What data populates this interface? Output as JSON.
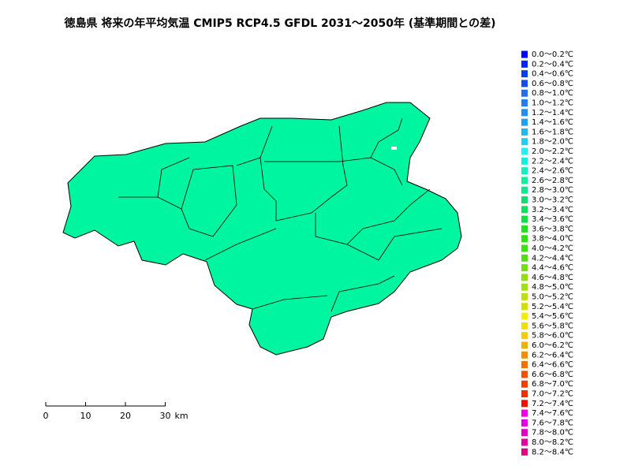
{
  "title": "徳島県 将来の年平均気温 CMIP5 RCP4.5 GFDL 2031～2050年 (基準期間との差)",
  "legend": [
    {
      "label": "0.0～0.2℃",
      "color": "#0000ff"
    },
    {
      "label": "0.2～0.4℃",
      "color": "#0028f0"
    },
    {
      "label": "0.4～0.6℃",
      "color": "#0040e8"
    },
    {
      "label": "0.6～0.8℃",
      "color": "#1050e8"
    },
    {
      "label": "0.8～1.0℃",
      "color": "#2070e8"
    },
    {
      "label": "1.0～1.2℃",
      "color": "#2080f0"
    },
    {
      "label": "1.2～1.4℃",
      "color": "#2090f0"
    },
    {
      "label": "1.4～1.6℃",
      "color": "#20a0f0"
    },
    {
      "label": "1.6～1.8℃",
      "color": "#20b8f0"
    },
    {
      "label": "1.8～2.0℃",
      "color": "#20d0f0"
    },
    {
      "label": "2.0～2.2℃",
      "color": "#20f0f0"
    },
    {
      "label": "2.2～2.4℃",
      "color": "#10f0e0"
    },
    {
      "label": "2.4～2.6℃",
      "color": "#10f0c0"
    },
    {
      "label": "2.6～2.8℃",
      "color": "#10f0a0"
    },
    {
      "label": "2.8～3.0℃",
      "color": "#10e890"
    },
    {
      "label": "3.0～3.2℃",
      "color": "#10e070"
    },
    {
      "label": "3.2～3.4℃",
      "color": "#10e060"
    },
    {
      "label": "3.4～3.6℃",
      "color": "#10e040"
    },
    {
      "label": "3.6～3.8℃",
      "color": "#20e020"
    },
    {
      "label": "3.8～4.0℃",
      "color": "#30e010"
    },
    {
      "label": "4.0～4.2℃",
      "color": "#40e010"
    },
    {
      "label": "4.2～4.4℃",
      "color": "#50e010"
    },
    {
      "label": "4.4～4.6℃",
      "color": "#70e010"
    },
    {
      "label": "4.6～4.8℃",
      "color": "#90e010"
    },
    {
      "label": "4.8～5.0℃",
      "color": "#a0e010"
    },
    {
      "label": "5.0～5.2℃",
      "color": "#c0e010"
    },
    {
      "label": "5.2～5.4℃",
      "color": "#d0e000"
    },
    {
      "label": "5.4～5.6℃",
      "color": "#f0f000"
    },
    {
      "label": "5.6～5.8℃",
      "color": "#f0e000"
    },
    {
      "label": "5.8～6.0℃",
      "color": "#f0d000"
    },
    {
      "label": "6.0～6.2℃",
      "color": "#f0b000"
    },
    {
      "label": "6.2～6.4℃",
      "color": "#f09000"
    },
    {
      "label": "6.4～6.6℃",
      "color": "#f07000"
    },
    {
      "label": "6.6～6.8℃",
      "color": "#f05000"
    },
    {
      "label": "6.8～7.0℃",
      "color": "#f04000"
    },
    {
      "label": "7.0～7.2℃",
      "color": "#f03000"
    },
    {
      "label": "7.2～7.4℃",
      "color": "#f01000"
    },
    {
      "label": "7.4～7.6℃",
      "color": "#f000e0"
    },
    {
      "label": "7.6～7.8℃",
      "color": "#e000e0"
    },
    {
      "label": "7.8～8.0℃",
      "color": "#e000c0"
    },
    {
      "label": "8.0～8.2℃",
      "color": "#e000a0"
    },
    {
      "label": "8.2～8.4℃",
      "color": "#e00080"
    }
  ],
  "scale_bar": {
    "ticks": [
      0,
      10,
      20,
      30
    ],
    "unit": "km"
  }
}
